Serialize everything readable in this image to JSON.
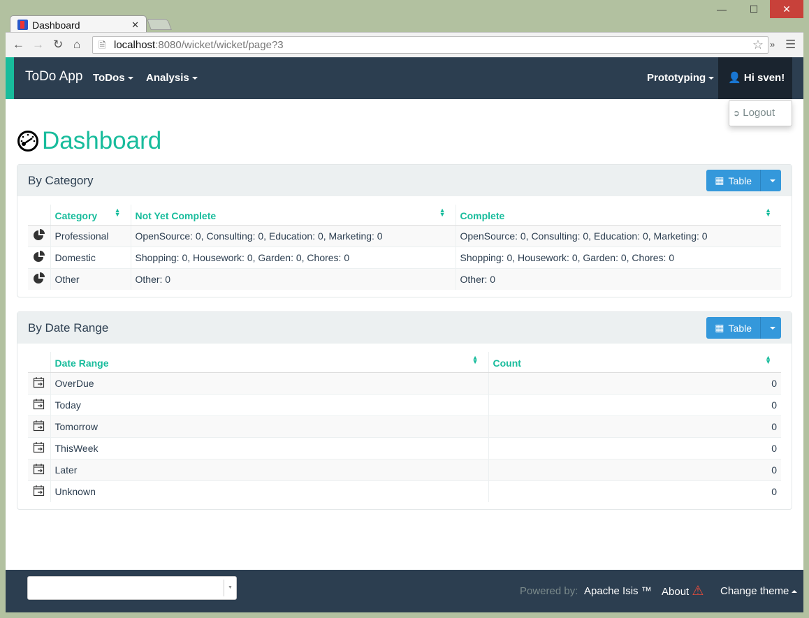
{
  "browser": {
    "tab_title": "Dashboard",
    "url_host": "localhost",
    "url_path": ":8080/wicket/wicket/page?3"
  },
  "navbar": {
    "brand": "ToDo App",
    "menus": [
      "ToDos",
      "Analysis"
    ],
    "prototyping": "Prototyping",
    "user": "Hi sven!",
    "dropdown": {
      "logout": "Logout"
    }
  },
  "page": {
    "title": "Dashboard"
  },
  "by_category": {
    "title": "By Category",
    "button": "Table",
    "columns": [
      "Category",
      "Not Yet Complete",
      "Complete"
    ],
    "rows": [
      {
        "category": "Professional",
        "not_yet_complete": "OpenSource: 0, Consulting: 0, Education: 0, Marketing: 0",
        "complete": "OpenSource: 0, Consulting: 0, Education: 0, Marketing: 0"
      },
      {
        "category": "Domestic",
        "not_yet_complete": "Shopping: 0, Housework: 0, Garden: 0, Chores: 0",
        "complete": "Shopping: 0, Housework: 0, Garden: 0, Chores: 0"
      },
      {
        "category": "Other",
        "not_yet_complete": "Other: 0",
        "complete": "Other: 0"
      }
    ]
  },
  "by_date_range": {
    "title": "By Date Range",
    "button": "Table",
    "columns": [
      "Date Range",
      "Count"
    ],
    "rows": [
      {
        "range": "OverDue",
        "count": "0"
      },
      {
        "range": "Today",
        "count": "0"
      },
      {
        "range": "Tomorrow",
        "count": "0"
      },
      {
        "range": "ThisWeek",
        "count": "0"
      },
      {
        "range": "Later",
        "count": "0"
      },
      {
        "range": "Unknown",
        "count": "0"
      }
    ]
  },
  "footer": {
    "powered_by": "Powered by:",
    "apache_isis": "Apache Isis ™",
    "about": "About",
    "change_theme": "Change theme"
  },
  "colors": {
    "navbar": "#2c3e50",
    "accent": "#18bc9c",
    "button": "#3498db",
    "warning": "#e74c3c"
  }
}
